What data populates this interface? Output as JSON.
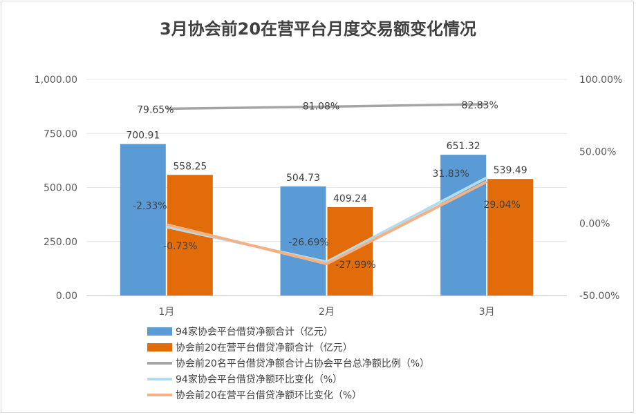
{
  "title": "3月协会前20在营平台月度交易额变化情况",
  "chart_data": {
    "type": "bar",
    "categories": [
      "1月",
      "2月",
      "3月"
    ],
    "left_axis": {
      "ylim": [
        0,
        1000
      ],
      "ticks": [
        "0.00",
        "250.00",
        "500.00",
        "750.00",
        "1,000.00"
      ],
      "tick_values": [
        0,
        250,
        500,
        750,
        1000
      ]
    },
    "right_axis": {
      "ylim": [
        -50,
        100
      ],
      "ticks": [
        "-50.00%",
        "0.00%",
        "50.00%",
        "100.00%"
      ],
      "tick_values": [
        -50,
        0,
        50,
        100
      ]
    },
    "bar_series": [
      {
        "name": "94家协会平台借贷净额合计（亿元）",
        "color": "#5b9bd5",
        "values": [
          700.91,
          504.73,
          651.32
        ],
        "labels": [
          "700.91",
          "504.73",
          "651.32"
        ]
      },
      {
        "name": "协会前20在营平台借贷净额合计（亿元）",
        "color": "#e36c0a",
        "values": [
          558.25,
          409.24,
          539.49
        ],
        "labels": [
          "558.25",
          "409.24",
          "539.49"
        ]
      }
    ],
    "line_series": [
      {
        "name": "协会前20名平台借贷净额合计占协会平台总净额比例（%）",
        "color": "#a5a5a5",
        "values": [
          79.65,
          81.08,
          82.83
        ],
        "labels": [
          "79.65%",
          "81.08%",
          "82.83%"
        ]
      },
      {
        "name": "94家协会平台借贷净额环比变化（%）",
        "color": "#b4dcec",
        "values": [
          -2.33,
          -26.69,
          31.83
        ],
        "labels": [
          "-2.33%",
          "-26.69%",
          "31.83%"
        ]
      },
      {
        "name": "协会前20在营平台借贷净额环比变化（%）",
        "color": "#f4b183",
        "values": [
          -0.73,
          -27.99,
          29.04
        ],
        "labels": [
          "-0.73%",
          "-27.99%",
          "29.04%"
        ]
      }
    ]
  }
}
